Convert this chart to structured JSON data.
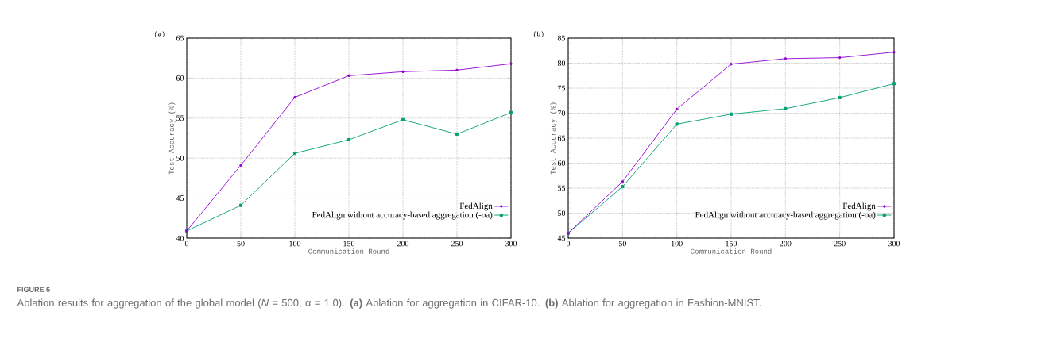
{
  "chart_data": [
    {
      "type": "line",
      "title": "(a)",
      "xlabel": "Communication Round",
      "ylabel": "Test Accuracy (%)",
      "x": [
        0,
        50,
        100,
        150,
        200,
        250,
        300
      ],
      "series": [
        {
          "name": "FedAlign",
          "color": "#9400d3",
          "marker": "circle",
          "values": [
            40.9,
            49.1,
            57.6,
            60.3,
            60.8,
            61.0,
            61.8
          ]
        },
        {
          "name": "FedAlign without accuracy-based aggregation (-oa)",
          "color": "#009e73",
          "marker": "square",
          "values": [
            40.9,
            44.1,
            50.6,
            52.3,
            54.8,
            53.0,
            55.7
          ]
        }
      ],
      "xlim": [
        0,
        300
      ],
      "xticks": [
        0,
        50,
        100,
        150,
        200,
        250,
        300
      ],
      "ylim": [
        40,
        65
      ],
      "yticks": [
        40,
        45,
        50,
        55,
        60,
        65
      ],
      "grid": true,
      "legend": "bottom right",
      "line_style": "solid",
      "annotations": [
        "FIGURE 6",
        "Ablation results for aggregation of the global model (*N* = 500, α = 1.0). **(a)** Ablation for aggregation in CIFAR-10. **(b)** Ablation for aggregation in Fashion-MNIST."
      ]
    },
    {
      "type": "line",
      "title": "(b)",
      "xlabel": "Communication Round",
      "ylabel": "Test Accuracy (%)",
      "x": [
        0,
        50,
        100,
        150,
        200,
        250,
        300
      ],
      "series": [
        {
          "name": "FedAlign",
          "color": "#9400d3",
          "marker": "circle",
          "values": [
            46.0,
            56.3,
            70.8,
            79.8,
            80.9,
            81.1,
            82.2
          ]
        },
        {
          "name": "FedAlign without accuracy-based aggregation (-oa)",
          "color": "#009e73",
          "marker": "square",
          "values": [
            46.0,
            55.3,
            67.8,
            69.8,
            70.9,
            73.1,
            75.9
          ]
        }
      ],
      "xlim": [
        0,
        300
      ],
      "xticks": [
        0,
        50,
        100,
        150,
        200,
        250,
        300
      ],
      "ylim": [
        45,
        85
      ],
      "yticks": [
        45,
        50,
        55,
        60,
        65,
        70,
        75,
        80,
        85
      ],
      "grid": true,
      "legend": "bottom right",
      "line_style": "solid"
    }
  ]
}
